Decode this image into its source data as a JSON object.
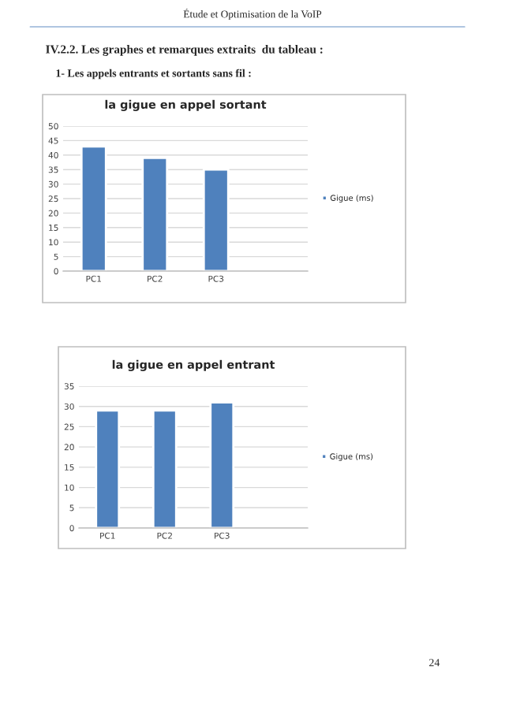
{
  "chart_data": [
    {
      "type": "bar",
      "title": "la gigue en appel sortant",
      "categories": [
        "PC1",
        "PC2",
        "PC3",
        null
      ],
      "series": [
        {
          "name": "Gigue (ms)",
          "color": "#4f81bd",
          "values": [
            43,
            39,
            35,
            null
          ]
        }
      ],
      "ylim": [
        0,
        50
      ],
      "yticks": [
        0,
        5,
        10,
        15,
        20,
        25,
        30,
        35,
        40,
        45,
        50
      ],
      "grid": "y",
      "legend": "right",
      "annotations": [
        "Étude et Optimisation de la VoIP",
        "IV.2.2. Les graphes et remarques extraits  du tableau :",
        "1- Les appels entrants et sortants sans fil :"
      ]
    },
    {
      "type": "bar",
      "title": "la gigue en appel entrant",
      "categories": [
        "PC1",
        "PC2",
        "PC3",
        null
      ],
      "series": [
        {
          "name": "Gigue (ms)",
          "color": "#4f81bd",
          "values": [
            29,
            29,
            31,
            null
          ]
        }
      ],
      "ylim": [
        0,
        35
      ],
      "yticks": [
        0,
        5,
        10,
        15,
        20,
        25,
        30,
        35
      ],
      "grid": "y",
      "legend": "right",
      "annotations": [
        "24"
      ]
    }
  ]
}
